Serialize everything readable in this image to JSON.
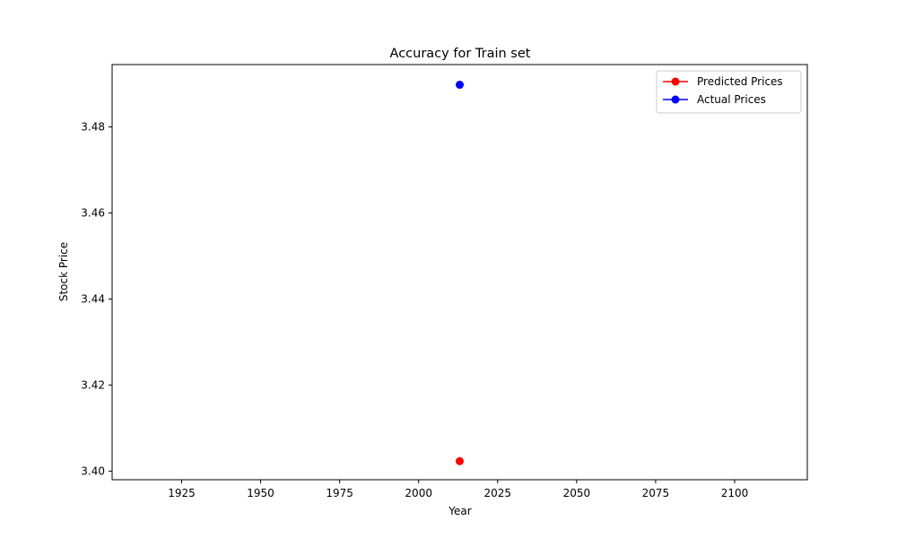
{
  "chart_data": {
    "type": "scatter",
    "title": "Accuracy for Train set",
    "xlabel": "Year",
    "ylabel": "Stock Price",
    "xlim": [
      1903,
      2123
    ],
    "ylim": [
      3.398,
      3.4945
    ],
    "xticks": [
      1925,
      1950,
      1975,
      2000,
      2025,
      2050,
      2075,
      2100
    ],
    "yticks": [
      3.4,
      3.42,
      3.44,
      3.46,
      3.48
    ],
    "ytick_labels": [
      "3.40",
      "3.42",
      "3.44",
      "3.46",
      "3.48"
    ],
    "grid": false,
    "legend_position": "top-right",
    "series": [
      {
        "name": "Predicted Prices",
        "color": "#ff0000",
        "x": [
          2013
        ],
        "y": [
          3.4023
        ]
      },
      {
        "name": "Actual Prices",
        "color": "#0000ff",
        "x": [
          2013
        ],
        "y": [
          3.4898
        ]
      }
    ]
  }
}
